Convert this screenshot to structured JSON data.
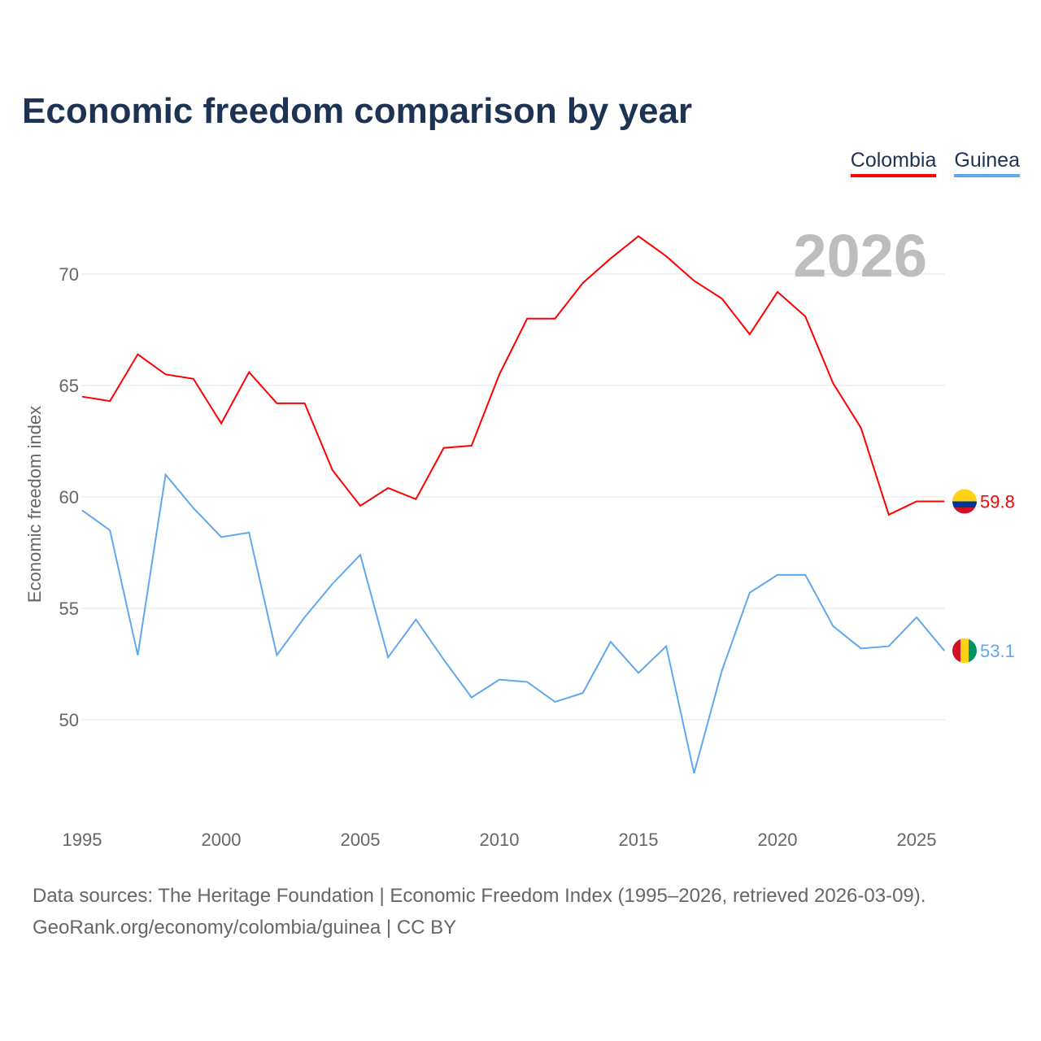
{
  "chart_data": {
    "type": "line",
    "title": "Economic freedom comparison by year",
    "xlabel": "",
    "ylabel": "Economic freedom index",
    "xlim": [
      1995,
      2026
    ],
    "ylim": [
      45.5,
      73
    ],
    "x_ticks": [
      "1995",
      "2000",
      "2005",
      "2010",
      "2015",
      "2020",
      "2025"
    ],
    "y_ticks": [
      "50",
      "55",
      "60",
      "65",
      "70"
    ],
    "year_label": "2026",
    "x": [
      1995,
      1996,
      1997,
      1998,
      1999,
      2000,
      2001,
      2002,
      2003,
      2004,
      2005,
      2006,
      2007,
      2008,
      2009,
      2010,
      2011,
      2012,
      2013,
      2014,
      2015,
      2016,
      2017,
      2018,
      2019,
      2020,
      2021,
      2022,
      2023,
      2024,
      2025,
      2026
    ],
    "series": [
      {
        "name": "Colombia",
        "color": "#ff0000",
        "end_label": "59.8",
        "values": [
          64.5,
          64.3,
          66.4,
          65.5,
          65.3,
          63.3,
          65.6,
          64.2,
          64.2,
          61.2,
          59.6,
          60.4,
          59.9,
          62.2,
          62.3,
          65.5,
          68.0,
          68.0,
          69.6,
          70.7,
          71.7,
          70.8,
          69.7,
          68.9,
          67.3,
          69.2,
          68.1,
          65.1,
          63.1,
          59.2,
          59.8,
          59.8
        ]
      },
      {
        "name": "Guinea",
        "color": "#5fa8ee",
        "end_label": "53.1",
        "values": [
          59.4,
          58.5,
          52.9,
          61.0,
          59.5,
          58.2,
          58.4,
          52.9,
          54.6,
          56.1,
          57.4,
          52.8,
          54.5,
          52.7,
          51.0,
          51.8,
          51.7,
          50.8,
          51.2,
          53.5,
          52.1,
          53.3,
          47.6,
          52.2,
          55.7,
          56.5,
          56.5,
          54.2,
          53.2,
          53.3,
          54.6,
          53.1
        ]
      }
    ],
    "legend": "top-right",
    "grid": true
  },
  "footer": {
    "line1": "Data sources: The Heritage Foundation | Economic Freedom Index (1995–2026, retrieved 2026-03-09).",
    "line2": "GeoRank.org/economy/colombia/guinea | CC BY"
  }
}
